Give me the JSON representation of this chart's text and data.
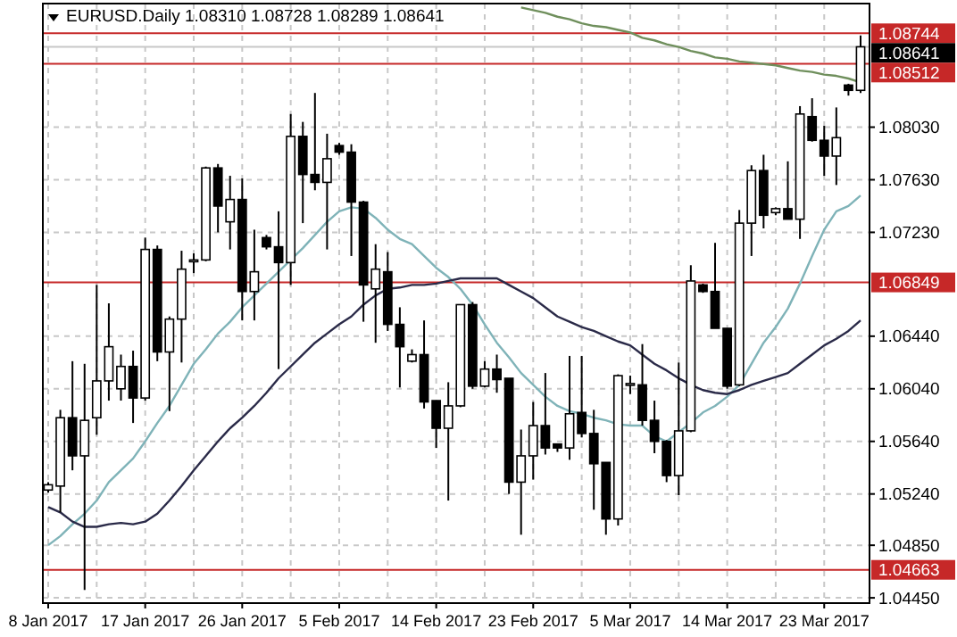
{
  "chart_data": {
    "type": "candlestick",
    "title": "EURUSD.Daily  1.08310 1.08728 1.08289 1.08641",
    "categories": [
      "8 Jan 2017",
      null,
      null,
      null,
      null,
      null,
      null,
      null,
      "17 Jan 2017",
      null,
      null,
      null,
      null,
      null,
      null,
      null,
      "26 Jan 2017",
      null,
      null,
      null,
      null,
      null,
      null,
      null,
      "5 Feb 2017",
      null,
      null,
      null,
      null,
      null,
      null,
      null,
      "14 Feb 2017",
      null,
      null,
      null,
      null,
      null,
      null,
      null,
      "23 Feb 2017",
      null,
      null,
      null,
      null,
      null,
      null,
      null,
      "5 Mar 2017",
      null,
      null,
      null,
      null,
      null,
      null,
      null,
      "14 Mar 2017",
      null,
      null,
      null,
      null,
      null,
      null,
      null,
      "23 Mar 2017",
      null,
      null,
      null
    ],
    "ohlc": [
      [
        1.0527,
        1.0533,
        1.0525,
        1.0531
      ],
      [
        1.053,
        1.0588,
        1.051,
        1.0582
      ],
      [
        1.0582,
        1.0625,
        1.0542,
        1.0553
      ],
      [
        1.0553,
        1.0623,
        1.0451,
        1.058
      ],
      [
        1.0582,
        1.0683,
        1.0569,
        1.061
      ],
      [
        1.061,
        1.0669,
        1.0595,
        1.0636
      ],
      [
        1.0604,
        1.063,
        1.0595,
        1.0621
      ],
      [
        1.0621,
        1.0633,
        1.0578,
        1.0597
      ],
      [
        1.0597,
        1.0719,
        1.0595,
        1.071
      ],
      [
        1.071,
        1.0713,
        1.0625,
        1.0632
      ],
      [
        1.0632,
        1.0659,
        1.0587,
        1.0657
      ],
      [
        1.0657,
        1.0709,
        1.0624,
        1.0695
      ],
      [
        1.0701,
        1.0707,
        1.0692,
        1.0702
      ],
      [
        1.0702,
        1.0773,
        1.0701,
        1.0772
      ],
      [
        1.0772,
        1.0775,
        1.0723,
        1.0743
      ],
      [
        1.0731,
        1.0766,
        1.071,
        1.0748
      ],
      [
        1.0748,
        1.0764,
        1.0656,
        1.0678
      ],
      [
        1.0678,
        1.0725,
        1.0656,
        1.0693
      ],
      [
        1.0719,
        1.0721,
        1.071,
        1.0712
      ],
      [
        1.0712,
        1.0739,
        1.0619,
        1.07
      ],
      [
        1.07,
        1.0813,
        1.0683,
        1.0796
      ],
      [
        1.0796,
        1.0807,
        1.073,
        1.0767
      ],
      [
        1.0767,
        1.0829,
        1.0755,
        1.0761
      ],
      [
        1.0761,
        1.0798,
        1.071,
        1.0779
      ],
      [
        1.0789,
        1.0791,
        1.0782,
        1.0784
      ],
      [
        1.0784,
        1.079,
        1.0705,
        1.0746
      ],
      [
        1.0746,
        1.0747,
        1.0655,
        1.0683
      ],
      [
        1.068,
        1.0714,
        1.0639,
        1.0695
      ],
      [
        1.0693,
        1.0708,
        1.0648,
        1.0653
      ],
      [
        1.0653,
        1.0666,
        1.0605,
        1.0636
      ],
      [
        1.0625,
        1.0634,
        1.0624,
        1.063
      ],
      [
        1.063,
        1.0656,
        1.0589,
        1.0594
      ],
      [
        1.0595,
        1.0595,
        1.0559,
        1.0574
      ],
      [
        1.0574,
        1.0609,
        1.0519,
        1.0591
      ],
      [
        1.0591,
        1.0668,
        1.059,
        1.0668
      ],
      [
        1.0668,
        1.067,
        1.0604,
        1.0606
      ],
      [
        1.0606,
        1.0625,
        1.0605,
        1.0619
      ],
      [
        1.0619,
        1.063,
        1.0601,
        1.0611
      ],
      [
        1.0612,
        1.0612,
        1.0524,
        1.0533
      ],
      [
        1.0533,
        1.0573,
        1.0493,
        1.0553
      ],
      [
        1.0553,
        1.0594,
        1.0535,
        1.0576
      ],
      [
        1.0576,
        1.0616,
        1.0554,
        1.0559
      ],
      [
        1.0562,
        1.0562,
        1.0556,
        1.0559
      ],
      [
        1.0559,
        1.0629,
        1.055,
        1.0585
      ],
      [
        1.0586,
        1.0629,
        1.0567,
        1.057
      ],
      [
        1.057,
        1.0588,
        1.0512,
        1.0547
      ],
      [
        1.0548,
        1.0548,
        1.0493,
        1.0505
      ],
      [
        1.0505,
        1.0615,
        1.05,
        1.0614
      ],
      [
        1.0607,
        1.0614,
        1.06,
        1.0608
      ],
      [
        1.0607,
        1.0638,
        1.0576,
        1.058
      ],
      [
        1.058,
        1.0595,
        1.0555,
        1.0564
      ],
      [
        1.0564,
        1.0565,
        1.0533,
        1.0538
      ],
      [
        1.0538,
        1.0624,
        1.0523,
        1.0572
      ],
      [
        1.0572,
        1.0698,
        1.0571,
        1.0686
      ],
      [
        1.0683,
        1.0684,
        1.0677,
        1.0678
      ],
      [
        1.0678,
        1.0715,
        1.065,
        1.065
      ],
      [
        1.065,
        1.065,
        1.0604,
        1.0606
      ],
      [
        1.0607,
        1.074,
        1.0606,
        1.073
      ],
      [
        1.073,
        1.0774,
        1.0705,
        1.077
      ],
      [
        1.077,
        1.0782,
        1.0726,
        1.0736
      ],
      [
        1.0738,
        1.0742,
        1.0736,
        1.0741
      ],
      [
        1.0741,
        1.0777,
        1.0733,
        1.0733
      ],
      [
        1.0733,
        1.0819,
        1.0718,
        1.0813
      ],
      [
        1.0811,
        1.0825,
        1.0792,
        1.0793
      ],
      [
        1.0793,
        1.0804,
        1.0766,
        1.0781
      ],
      [
        1.0781,
        1.0818,
        1.0759,
        1.0795
      ],
      [
        1.0835,
        1.0836,
        1.0827,
        1.0831
      ],
      [
        1.0831,
        1.08728,
        1.08289,
        1.08641
      ]
    ],
    "series": [
      {
        "type": "line",
        "color": "#7fb3b8",
        "values": [
          1.0485,
          1.0492,
          1.0501,
          1.0509,
          1.0519,
          1.0533,
          1.0542,
          1.0551,
          1.0564,
          1.0578,
          1.0591,
          1.0607,
          1.0623,
          1.0634,
          1.0646,
          1.0655,
          1.0666,
          1.0675,
          1.0684,
          1.0693,
          1.0702,
          1.0711,
          1.0721,
          1.0731,
          1.0739,
          1.0742,
          1.0741,
          1.0734,
          1.0725,
          1.0718,
          1.0714,
          1.0705,
          1.0696,
          1.0689,
          1.068,
          1.0668,
          1.0653,
          1.0639,
          1.0628,
          1.0616,
          1.0607,
          1.0598,
          1.0591,
          1.0587,
          1.0585,
          1.0582,
          1.058,
          1.0577,
          1.0576,
          1.0576,
          1.0568,
          1.0564,
          1.0571,
          1.0578,
          1.0586,
          1.0591,
          1.0598,
          1.0607,
          1.0623,
          1.0639,
          1.0651,
          1.0665,
          1.0684,
          1.0705,
          1.0725,
          1.0739,
          1.0743,
          1.0751
        ]
      },
      {
        "type": "line",
        "color": "#2a2a48",
        "values": [
          1.0514,
          1.051,
          1.0503,
          1.0499,
          1.0499,
          1.0501,
          1.0502,
          1.0501,
          1.0503,
          1.0509,
          1.0519,
          1.053,
          1.0542,
          1.0553,
          1.0564,
          1.0574,
          1.0582,
          1.0591,
          1.0601,
          1.0612,
          1.0621,
          1.063,
          1.0639,
          1.0646,
          1.0653,
          1.0659,
          1.0668,
          1.0675,
          1.068,
          1.0681,
          1.0683,
          1.0683,
          1.0684,
          1.0686,
          1.0688,
          1.0688,
          1.0688,
          1.0688,
          1.0683,
          1.0678,
          1.0673,
          1.0666,
          1.0659,
          1.0655,
          1.0651,
          1.0648,
          1.0644,
          1.064,
          1.0637,
          1.063,
          1.0623,
          1.0618,
          1.0612,
          1.0607,
          1.0603,
          1.0601,
          1.06,
          1.0603,
          1.0607,
          1.061,
          1.0613,
          1.0616,
          1.0623,
          1.063,
          1.0637,
          1.0642,
          1.0648,
          1.0656
        ]
      },
      {
        "type": "line",
        "color": "#6f8f5c",
        "values": [
          null,
          null,
          null,
          null,
          null,
          null,
          null,
          null,
          null,
          null,
          null,
          null,
          null,
          null,
          null,
          null,
          null,
          null,
          null,
          null,
          null,
          null,
          null,
          null,
          null,
          null,
          null,
          null,
          null,
          null,
          null,
          null,
          null,
          null,
          null,
          null,
          null,
          null,
          null,
          1.0894,
          1.0892,
          1.089,
          1.0887,
          1.0885,
          1.0882,
          1.088,
          1.0879,
          1.0877,
          1.0875,
          1.0871,
          1.0869,
          1.0866,
          1.0864,
          1.0861,
          1.0859,
          1.0856,
          1.0855,
          1.0853,
          1.0852,
          1.0851,
          1.085,
          1.0848,
          1.0846,
          1.0845,
          1.0843,
          1.0842,
          1.084,
          1.0837
        ]
      }
    ],
    "ylim": [
      1.0441,
      1.0897
    ],
    "yticks": [
      {
        "value": 1.0803,
        "label": "1.08030"
      },
      {
        "value": 1.0763,
        "label": "1.07630"
      },
      {
        "value": 1.0723,
        "label": "1.07230"
      },
      {
        "value": 1.0644,
        "label": "1.06440"
      },
      {
        "value": 1.0604,
        "label": "1.06040"
      },
      {
        "value": 1.0564,
        "label": "1.05640"
      },
      {
        "value": 1.0524,
        "label": "1.05240"
      },
      {
        "value": 1.0485,
        "label": "1.04850"
      },
      {
        "value": 1.0445,
        "label": "1.04450"
      }
    ],
    "ref_lines": [
      {
        "axis": "y",
        "value": 1.08744,
        "label": "1.08744",
        "color": "#c62828"
      },
      {
        "axis": "y",
        "value": 1.08641,
        "label": "1.08641",
        "color": "#c8c8c8"
      },
      {
        "axis": "y",
        "value": 1.08512,
        "label": "1.08512",
        "color": "#c62828"
      },
      {
        "axis": "y",
        "value": 1.06849,
        "label": "1.06849",
        "color": "#c62828"
      },
      {
        "axis": "y",
        "value": 1.04663,
        "label": "1.04663",
        "color": "#c62828"
      }
    ],
    "grid": true
  }
}
